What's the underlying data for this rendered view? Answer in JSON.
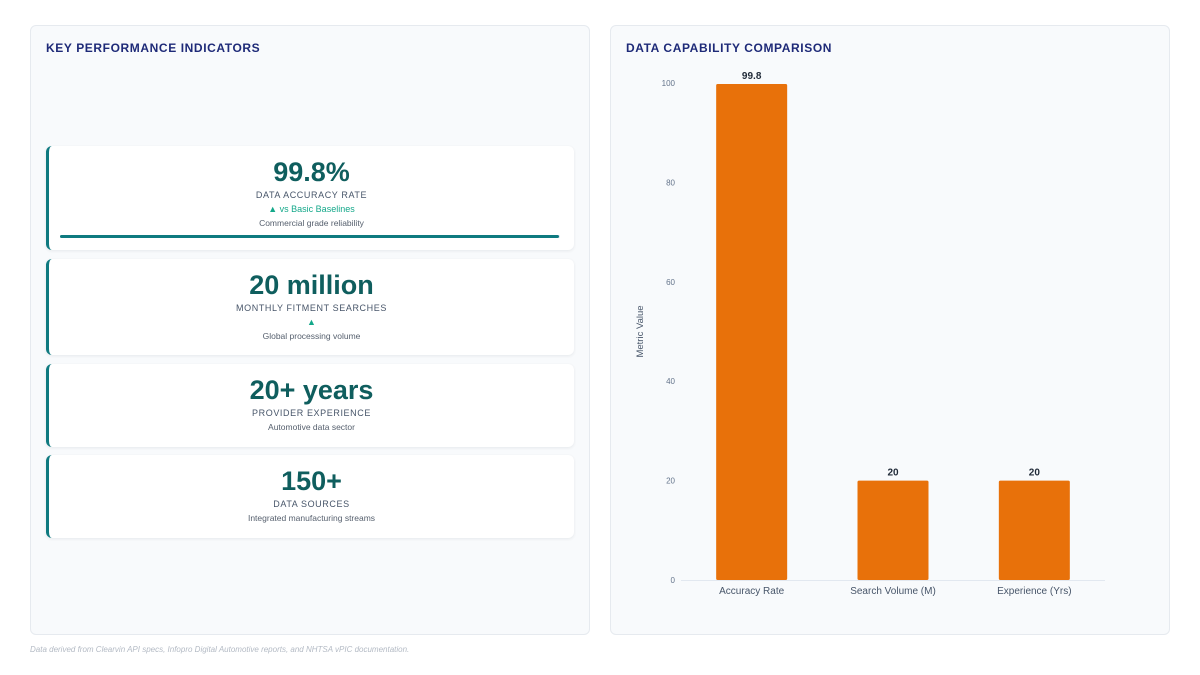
{
  "kpi_panel": {
    "title": "KEY PERFORMANCE INDICATORS",
    "cards": [
      {
        "value": "99.8%",
        "label": "DATA ACCURACY RATE",
        "trend": "▲ vs Basic Baselines",
        "note": "Commercial grade reliability",
        "progress_fraction": 0.998
      },
      {
        "value": "20 million",
        "label": "MONTHLY FITMENT SEARCHES",
        "trend": "▲",
        "note": "Global processing volume"
      },
      {
        "value": "20+ years",
        "label": "PROVIDER EXPERIENCE",
        "note": "Automotive data sector"
      },
      {
        "value": "150+",
        "label": "DATA SOURCES",
        "note": "Integrated manufacturing streams"
      }
    ]
  },
  "chart_panel": {
    "title": "DATA CAPABILITY COMPARISON"
  },
  "chart_data": {
    "type": "bar",
    "categories": [
      "Accuracy Rate",
      "Search Volume (M)",
      "Experience (Yrs)"
    ],
    "values": [
      99.8,
      20,
      20
    ],
    "data_labels": [
      "99.8",
      "20",
      "20"
    ],
    "title": "DATA CAPABILITY COMPARISON",
    "xlabel": "",
    "ylabel": "Metric Value",
    "ylim": [
      0,
      100
    ],
    "yticks": [
      0,
      20,
      40,
      60,
      80,
      100
    ],
    "grid": false,
    "legend": "none",
    "bar_color": "#e8710a"
  },
  "colors": {
    "accent": "#0f7a80",
    "value_text": "#0f5e5e",
    "trend_up": "#14a88a",
    "title": "#1e2a78",
    "bar": "#e8710a"
  },
  "footer": {
    "text": "Data derived from Clearvin API specs, Infopro Digital Automotive reports, and NHTSA vPIC documentation."
  }
}
